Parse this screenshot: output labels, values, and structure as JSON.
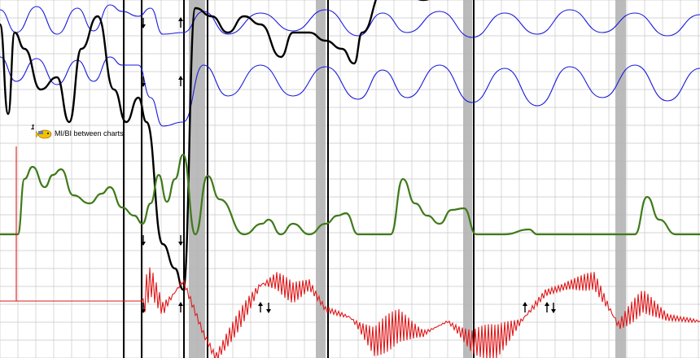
{
  "chart_data": {
    "type": "line",
    "title": "",
    "xlabel": "",
    "ylabel": "",
    "grid": true,
    "annotation": {
      "number": "1",
      "text": "MI/BI between charts",
      "icon": "camera-fish-icon"
    },
    "colors": {
      "pneumo_upper": "#1a1adc",
      "pneumo_lower": "#1a1adc",
      "eda": "#000000",
      "cardio": "#3f7a1a",
      "activity": "#e0191b",
      "stimulus_band": "#b4b4b4",
      "grid": "#c8c8c8"
    },
    "x_range": [
      0,
      860
    ],
    "vertical_event_lines": [
      152,
      174,
      226,
      255,
      403,
      582
    ],
    "stimulus_bands": [
      {
        "start": 232,
        "end": 252
      },
      {
        "start": 388,
        "end": 400
      },
      {
        "start": 569,
        "end": 580
      },
      {
        "start": 756,
        "end": 769
      }
    ],
    "event_arrows": [
      {
        "x": 176,
        "dir": "down",
        "row": "pneumo"
      },
      {
        "x": 176,
        "dir": "down",
        "row": "pneumo-2"
      },
      {
        "x": 222,
        "dir": "up",
        "row": "pneumo"
      },
      {
        "x": 222,
        "dir": "up",
        "row": "pneumo-2"
      },
      {
        "x": 176,
        "dir": "down",
        "row": "cardio"
      },
      {
        "x": 222,
        "dir": "down",
        "row": "cardio"
      },
      {
        "x": 176,
        "dir": "down",
        "row": "activity"
      },
      {
        "x": 222,
        "dir": "up",
        "row": "activity"
      },
      {
        "x": 320,
        "dir": "up",
        "row": "activity"
      },
      {
        "x": 330,
        "dir": "down",
        "row": "activity"
      },
      {
        "x": 645,
        "dir": "up",
        "row": "activity"
      },
      {
        "x": 672,
        "dir": "up",
        "row": "activity"
      },
      {
        "x": 680,
        "dir": "down",
        "row": "activity"
      }
    ],
    "series": [
      {
        "id": "pneumo_upper",
        "x": [
          0,
          20,
          45,
          70,
          95,
          115,
          135,
          150,
          170,
          185,
          200,
          225,
          250,
          280,
          320,
          360,
          400,
          440,
          470,
          500,
          540,
          580,
          620,
          660,
          700,
          740,
          780,
          820,
          860
        ],
        "y": [
          12,
          40,
          8,
          42,
          10,
          38,
          6,
          14,
          20,
          10,
          42,
          40,
          14,
          42,
          16,
          38,
          12,
          44,
          16,
          40,
          14,
          46,
          16,
          42,
          12,
          40,
          16,
          44,
          18
        ]
      },
      {
        "id": "pneumo_lower",
        "x": [
          0,
          20,
          45,
          70,
          95,
          115,
          135,
          150,
          170,
          185,
          200,
          225,
          250,
          280,
          320,
          360,
          400,
          440,
          470,
          500,
          540,
          580,
          620,
          660,
          700,
          740,
          780,
          820,
          860
        ],
        "y": [
          70,
          100,
          72,
          104,
          74,
          100,
          70,
          80,
          80,
          120,
          155,
          150,
          80,
          118,
          80,
          118,
          82,
          122,
          86,
          120,
          80,
          126,
          84,
          130,
          82,
          120,
          80,
          124,
          84
        ]
      },
      {
        "id": "eda",
        "x": [
          0,
          10,
          18,
          30,
          50,
          70,
          85,
          100,
          120,
          140,
          155,
          170,
          180,
          200,
          215,
          225,
          240,
          260,
          280,
          300,
          320,
          345,
          360,
          380,
          400,
          420,
          435,
          445,
          470,
          500,
          520,
          545,
          560,
          580,
          620,
          700,
          760,
          800,
          840,
          860
        ],
        "y": [
          30,
          140,
          40,
          60,
          110,
          95,
          150,
          60,
          20,
          110,
          150,
          120,
          150,
          300,
          330,
          356,
          10,
          20,
          40,
          20,
          30,
          70,
          40,
          40,
          50,
          60,
          78,
          40,
          -10,
          -5,
          0,
          -8,
          -4,
          -6,
          -8,
          -5,
          -3,
          -10,
          -2,
          -8
        ]
      },
      {
        "id": "cardio",
        "x": [
          0,
          22,
          30,
          40,
          55,
          65,
          75,
          90,
          110,
          125,
          135,
          150,
          165,
          175,
          185,
          195,
          205,
          215,
          225,
          240,
          255,
          270,
          300,
          322,
          330,
          345,
          360,
          380,
          400,
          415,
          425,
          440,
          460,
          480,
          495,
          510,
          525,
          540,
          555,
          570,
          585,
          620,
          650,
          660,
          680,
          740,
          780,
          795,
          810,
          830,
          860
        ],
        "y": [
          288,
          288,
          220,
          205,
          230,
          215,
          208,
          240,
          250,
          238,
          230,
          255,
          265,
          275,
          250,
          215,
          248,
          220,
          190,
          288,
          216,
          245,
          288,
          275,
          270,
          288,
          275,
          288,
          275,
          265,
          262,
          288,
          288,
          288,
          220,
          250,
          265,
          275,
          258,
          256,
          288,
          288,
          282,
          288,
          288,
          288,
          288,
          242,
          270,
          288,
          288
        ]
      },
      {
        "id": "activity",
        "x": [
          0,
          20,
          30,
          60,
          100,
          140,
          175,
          185,
          200,
          225,
          250,
          265,
          290,
          320,
          340,
          360,
          380,
          400,
          430,
          460,
          490,
          520,
          550,
          580,
          610,
          640,
          670,
          700,
          730,
          760,
          790,
          820,
          860
        ],
        "y": [
          370,
          370,
          370,
          370,
          370,
          370,
          370,
          345,
          380,
          345,
          410,
          440,
          400,
          350,
          345,
          360,
          350,
          380,
          390,
          420,
          400,
          410,
          395,
          420,
          420,
          395,
          360,
          350,
          345,
          400,
          370,
          390,
          395
        ]
      }
    ]
  }
}
